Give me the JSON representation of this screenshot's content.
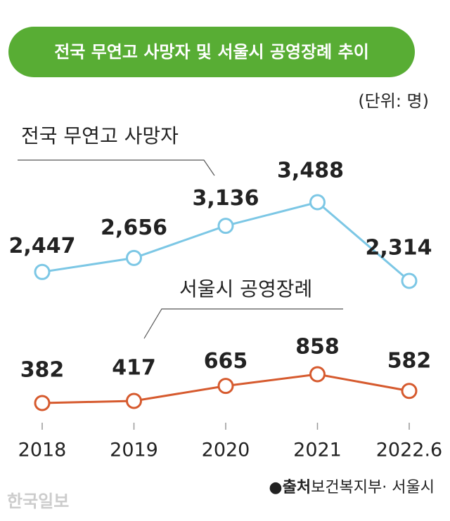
{
  "chart_data": {
    "type": "line",
    "title": "전국 무연고 사망자 및 서울시 공영장례 추이",
    "unit": "(단위: 명)",
    "categories": [
      "2018",
      "2019",
      "2020",
      "2021",
      "2022.6"
    ],
    "series": [
      {
        "name": "전국 무연고 사망자",
        "color": "#7cc7e5",
        "values": [
          2447,
          2656,
          3136,
          3488,
          2314
        ],
        "value_labels": [
          "2,447",
          "2,656",
          "3,136",
          "3,488",
          "2,314"
        ]
      },
      {
        "name": "서울시 공영장례",
        "color": "#d65a2e",
        "values": [
          382,
          417,
          665,
          858,
          582
        ]
      }
    ],
    "source_label": "●출처",
    "source": "보건복지부· 서울시",
    "watermark": "한국일보"
  }
}
